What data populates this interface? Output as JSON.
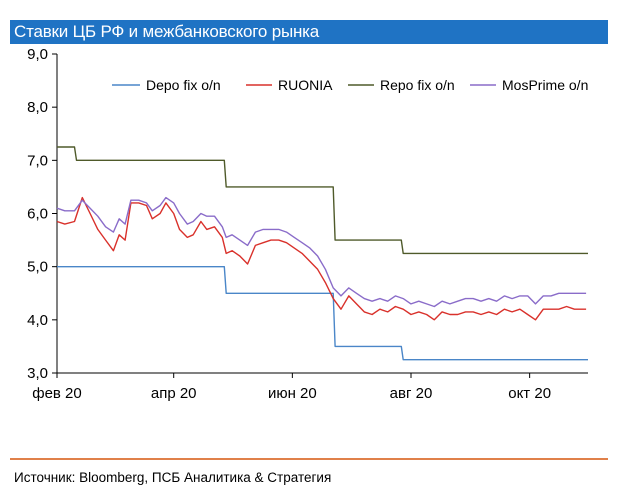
{
  "title": "Ставки ЦБ РФ и межбанковского рынка",
  "source": "Источник: Bloomberg, ПСБ Аналитика & Стратегия",
  "chart_data": {
    "type": "line",
    "xlabel": "",
    "ylabel": "",
    "ylim": [
      3.0,
      9.0
    ],
    "yticks": [
      3.0,
      4.0,
      5.0,
      6.0,
      7.0,
      8.0,
      9.0
    ],
    "ytick_labels": [
      "3,0",
      "4,0",
      "5,0",
      "6,0",
      "7,0",
      "8,0",
      "9,0"
    ],
    "xlim": [
      "2020-02-01",
      "2020-10-31"
    ],
    "xticks": [
      "2020-02-01",
      "2020-04-01",
      "2020-06-01",
      "2020-08-01",
      "2020-10-01"
    ],
    "xtick_labels": [
      "фев 20",
      "апр 20",
      "июн 20",
      "авг 20",
      "окт 20"
    ],
    "grid": false,
    "legend_position": "top",
    "series": [
      {
        "name": "Depo fix o/n",
        "color": "#4a86c8",
        "step": true,
        "points": [
          [
            "2020-02-01",
            5.0
          ],
          [
            "2020-04-27",
            5.0
          ],
          [
            "2020-04-28",
            4.5
          ],
          [
            "2020-06-22",
            4.5
          ],
          [
            "2020-06-23",
            3.5
          ],
          [
            "2020-07-27",
            3.5
          ],
          [
            "2020-07-28",
            3.25
          ],
          [
            "2020-10-31",
            3.25
          ]
        ]
      },
      {
        "name": "RUONIA",
        "color": "#d9312b",
        "step": false,
        "points": [
          [
            "2020-02-01",
            5.85
          ],
          [
            "2020-02-05",
            5.8
          ],
          [
            "2020-02-10",
            5.85
          ],
          [
            "2020-02-14",
            6.3
          ],
          [
            "2020-02-18",
            6.0
          ],
          [
            "2020-02-22",
            5.7
          ],
          [
            "2020-02-26",
            5.5
          ],
          [
            "2020-03-01",
            5.3
          ],
          [
            "2020-03-04",
            5.6
          ],
          [
            "2020-03-07",
            5.5
          ],
          [
            "2020-03-10",
            6.2
          ],
          [
            "2020-03-14",
            6.2
          ],
          [
            "2020-03-18",
            6.15
          ],
          [
            "2020-03-21",
            5.9
          ],
          [
            "2020-03-25",
            6.0
          ],
          [
            "2020-03-28",
            6.2
          ],
          [
            "2020-04-01",
            6.0
          ],
          [
            "2020-04-04",
            5.7
          ],
          [
            "2020-04-08",
            5.55
          ],
          [
            "2020-04-11",
            5.6
          ],
          [
            "2020-04-15",
            5.85
          ],
          [
            "2020-04-18",
            5.7
          ],
          [
            "2020-04-22",
            5.75
          ],
          [
            "2020-04-26",
            5.55
          ],
          [
            "2020-04-28",
            5.25
          ],
          [
            "2020-05-01",
            5.3
          ],
          [
            "2020-05-05",
            5.2
          ],
          [
            "2020-05-09",
            5.05
          ],
          [
            "2020-05-13",
            5.4
          ],
          [
            "2020-05-17",
            5.45
          ],
          [
            "2020-05-21",
            5.5
          ],
          [
            "2020-05-25",
            5.5
          ],
          [
            "2020-05-29",
            5.45
          ],
          [
            "2020-06-02",
            5.35
          ],
          [
            "2020-06-06",
            5.25
          ],
          [
            "2020-06-10",
            5.1
          ],
          [
            "2020-06-14",
            4.95
          ],
          [
            "2020-06-18",
            4.7
          ],
          [
            "2020-06-22",
            4.4
          ],
          [
            "2020-06-26",
            4.2
          ],
          [
            "2020-06-30",
            4.45
          ],
          [
            "2020-07-04",
            4.3
          ],
          [
            "2020-07-08",
            4.15
          ],
          [
            "2020-07-12",
            4.1
          ],
          [
            "2020-07-16",
            4.2
          ],
          [
            "2020-07-20",
            4.15
          ],
          [
            "2020-07-24",
            4.25
          ],
          [
            "2020-07-28",
            4.2
          ],
          [
            "2020-08-01",
            4.1
          ],
          [
            "2020-08-05",
            4.15
          ],
          [
            "2020-08-09",
            4.1
          ],
          [
            "2020-08-13",
            4.0
          ],
          [
            "2020-08-17",
            4.15
          ],
          [
            "2020-08-21",
            4.1
          ],
          [
            "2020-08-25",
            4.1
          ],
          [
            "2020-08-29",
            4.15
          ],
          [
            "2020-09-02",
            4.15
          ],
          [
            "2020-09-06",
            4.1
          ],
          [
            "2020-09-10",
            4.15
          ],
          [
            "2020-09-14",
            4.1
          ],
          [
            "2020-09-18",
            4.2
          ],
          [
            "2020-09-22",
            4.15
          ],
          [
            "2020-09-26",
            4.2
          ],
          [
            "2020-09-30",
            4.1
          ],
          [
            "2020-10-04",
            4.0
          ],
          [
            "2020-10-08",
            4.2
          ],
          [
            "2020-10-12",
            4.2
          ],
          [
            "2020-10-16",
            4.2
          ],
          [
            "2020-10-20",
            4.25
          ],
          [
            "2020-10-24",
            4.2
          ],
          [
            "2020-10-30",
            4.2
          ]
        ]
      },
      {
        "name": "Repo fix o/n",
        "color": "#4f5a2a",
        "step": true,
        "points": [
          [
            "2020-02-01",
            7.25
          ],
          [
            "2020-02-10",
            7.25
          ],
          [
            "2020-02-11",
            7.0
          ],
          [
            "2020-04-27",
            7.0
          ],
          [
            "2020-04-28",
            6.5
          ],
          [
            "2020-06-22",
            6.5
          ],
          [
            "2020-06-23",
            5.5
          ],
          [
            "2020-07-27",
            5.5
          ],
          [
            "2020-07-28",
            5.25
          ],
          [
            "2020-10-31",
            5.25
          ]
        ]
      },
      {
        "name": "MosPrime o/n",
        "color": "#8a6cc9",
        "step": false,
        "points": [
          [
            "2020-02-01",
            6.1
          ],
          [
            "2020-02-05",
            6.05
          ],
          [
            "2020-02-10",
            6.05
          ],
          [
            "2020-02-14",
            6.25
          ],
          [
            "2020-02-18",
            6.1
          ],
          [
            "2020-02-22",
            5.95
          ],
          [
            "2020-02-26",
            5.75
          ],
          [
            "2020-03-01",
            5.65
          ],
          [
            "2020-03-04",
            5.9
          ],
          [
            "2020-03-07",
            5.8
          ],
          [
            "2020-03-10",
            6.25
          ],
          [
            "2020-03-14",
            6.25
          ],
          [
            "2020-03-18",
            6.2
          ],
          [
            "2020-03-21",
            6.05
          ],
          [
            "2020-03-25",
            6.15
          ],
          [
            "2020-03-28",
            6.3
          ],
          [
            "2020-04-01",
            6.2
          ],
          [
            "2020-04-04",
            6.0
          ],
          [
            "2020-04-08",
            5.8
          ],
          [
            "2020-04-11",
            5.85
          ],
          [
            "2020-04-15",
            6.0
          ],
          [
            "2020-04-18",
            5.95
          ],
          [
            "2020-04-22",
            5.95
          ],
          [
            "2020-04-26",
            5.75
          ],
          [
            "2020-04-28",
            5.55
          ],
          [
            "2020-05-01",
            5.6
          ],
          [
            "2020-05-05",
            5.5
          ],
          [
            "2020-05-09",
            5.4
          ],
          [
            "2020-05-13",
            5.65
          ],
          [
            "2020-05-17",
            5.7
          ],
          [
            "2020-05-21",
            5.7
          ],
          [
            "2020-05-25",
            5.7
          ],
          [
            "2020-05-29",
            5.65
          ],
          [
            "2020-06-02",
            5.55
          ],
          [
            "2020-06-06",
            5.45
          ],
          [
            "2020-06-10",
            5.35
          ],
          [
            "2020-06-14",
            5.2
          ],
          [
            "2020-06-18",
            4.95
          ],
          [
            "2020-06-22",
            4.6
          ],
          [
            "2020-06-26",
            4.45
          ],
          [
            "2020-06-30",
            4.6
          ],
          [
            "2020-07-04",
            4.5
          ],
          [
            "2020-07-08",
            4.4
          ],
          [
            "2020-07-12",
            4.35
          ],
          [
            "2020-07-16",
            4.4
          ],
          [
            "2020-07-20",
            4.35
          ],
          [
            "2020-07-24",
            4.45
          ],
          [
            "2020-07-28",
            4.4
          ],
          [
            "2020-08-01",
            4.3
          ],
          [
            "2020-08-05",
            4.35
          ],
          [
            "2020-08-09",
            4.3
          ],
          [
            "2020-08-13",
            4.25
          ],
          [
            "2020-08-17",
            4.35
          ],
          [
            "2020-08-21",
            4.3
          ],
          [
            "2020-08-25",
            4.35
          ],
          [
            "2020-08-29",
            4.4
          ],
          [
            "2020-09-02",
            4.4
          ],
          [
            "2020-09-06",
            4.35
          ],
          [
            "2020-09-10",
            4.4
          ],
          [
            "2020-09-14",
            4.35
          ],
          [
            "2020-09-18",
            4.45
          ],
          [
            "2020-09-22",
            4.4
          ],
          [
            "2020-09-26",
            4.45
          ],
          [
            "2020-09-30",
            4.45
          ],
          [
            "2020-10-04",
            4.3
          ],
          [
            "2020-10-08",
            4.45
          ],
          [
            "2020-10-12",
            4.45
          ],
          [
            "2020-10-16",
            4.5
          ],
          [
            "2020-10-20",
            4.5
          ],
          [
            "2020-10-24",
            4.5
          ],
          [
            "2020-10-30",
            4.5
          ]
        ]
      }
    ]
  }
}
